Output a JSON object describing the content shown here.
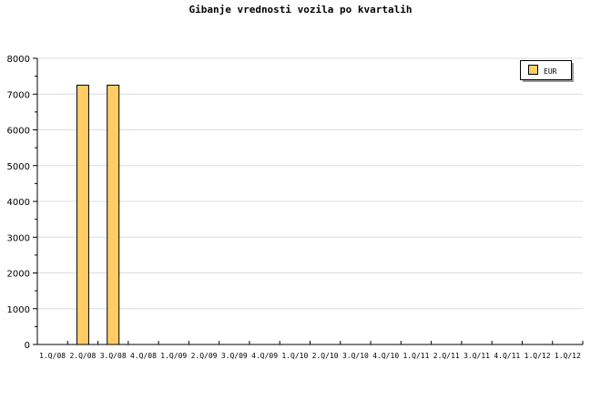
{
  "chart_data": {
    "type": "bar",
    "title": "Gibanje vrednosti vozila po kvartalih",
    "categories": [
      "1.Q/08",
      "2.Q/08",
      "3.Q/08",
      "4.Q/08",
      "1.Q/09",
      "2.Q/09",
      "3.Q/09",
      "4.Q/09",
      "1.Q/10",
      "2.Q/10",
      "3.Q/10",
      "4.Q/10",
      "1.Q/11",
      "2.Q/11",
      "3.Q/11",
      "4.Q/11",
      "1.Q/12",
      "1.Q/12"
    ],
    "series": [
      {
        "name": "EUR",
        "values": [
          0,
          7250,
          7250,
          0,
          0,
          0,
          0,
          0,
          0,
          0,
          0,
          0,
          0,
          0,
          0,
          0,
          0,
          0
        ],
        "color": "#ffcc66"
      }
    ],
    "ylim": [
      0,
      8000
    ],
    "yticks": [
      "0",
      "1000",
      "2000",
      "3000",
      "4000",
      "5000",
      "6000",
      "7000",
      "8000"
    ],
    "grid": true,
    "legend": "top-right",
    "xlabel": "",
    "ylabel": ""
  }
}
